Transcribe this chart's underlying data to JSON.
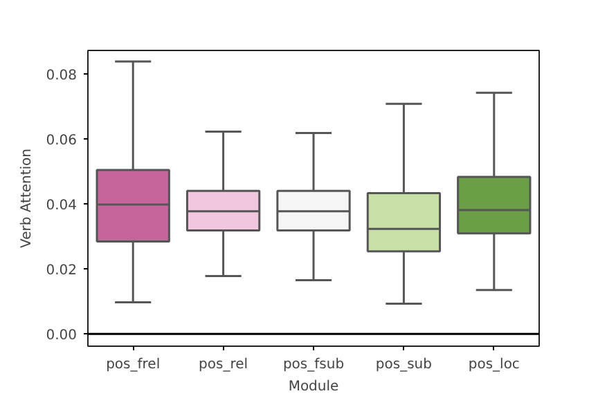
{
  "chart_data": {
    "type": "box",
    "xlabel": "Module",
    "ylabel": "Verb Attention",
    "categories": [
      "pos_frel",
      "pos_rel",
      "pos_fsub",
      "pos_sub",
      "pos_loc"
    ],
    "colors": [
      "#c6659b",
      "#f1c7e0",
      "#f5f5f5",
      "#c8e0a8",
      "#6a9f45"
    ],
    "boxes": [
      {
        "low": 0.0097,
        "q1": 0.0284,
        "median": 0.0398,
        "q3": 0.0504,
        "high": 0.0838
      },
      {
        "low": 0.0178,
        "q1": 0.0318,
        "median": 0.0377,
        "q3": 0.044,
        "high": 0.0622
      },
      {
        "low": 0.0165,
        "q1": 0.0318,
        "median": 0.0377,
        "q3": 0.044,
        "high": 0.0618
      },
      {
        "low": 0.0093,
        "q1": 0.0254,
        "median": 0.0323,
        "q3": 0.0433,
        "high": 0.0708
      },
      {
        "low": 0.0135,
        "q1": 0.0309,
        "median": 0.0381,
        "q3": 0.0483,
        "high": 0.0742
      }
    ],
    "ylim": [
      -0.0038,
      0.0872
    ],
    "yticks": [
      {
        "value": 0,
        "label": "0.00"
      },
      {
        "value": 0.02,
        "label": "0.02"
      },
      {
        "value": 0.04,
        "label": "0.04"
      },
      {
        "value": 0.06,
        "label": "0.06"
      },
      {
        "value": 0.08,
        "label": "0.08"
      }
    ],
    "ref_lines": [
      {
        "axis": "y",
        "value": 0,
        "color": "#000000"
      }
    ],
    "grid": false
  }
}
